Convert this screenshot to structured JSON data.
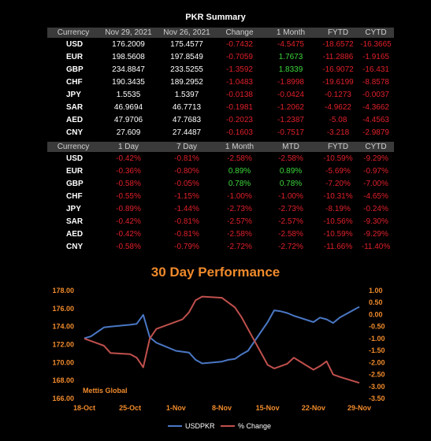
{
  "summary_title": "PKR Summary",
  "table1": {
    "headers": [
      "Currency",
      "Nov 29, 2021",
      "Nov 26, 2021",
      "Change",
      "1 Month",
      "FYTD",
      "CYTD"
    ],
    "rows": [
      [
        "USD",
        "176.2009",
        "175.4577",
        "-0.7432",
        "-4.5475",
        "-18.6572",
        "-16.3665"
      ],
      [
        "EUR",
        "198.5608",
        "197.8549",
        "-0.7059",
        "1.7673",
        "-11.2886",
        "-1.9165"
      ],
      [
        "GBP",
        "234.8847",
        "233.5255",
        "-1.3592",
        "1.8339",
        "-16.9072",
        "-16.431"
      ],
      [
        "CHF",
        "190.3435",
        "189.2952",
        "-1.0483",
        "-1.8998",
        "-19.6199",
        "-8.8578"
      ],
      [
        "JPY",
        "1.5535",
        "1.5397",
        "-0.0138",
        "-0.0424",
        "-0.1273",
        "-0.0037"
      ],
      [
        "SAR",
        "46.9694",
        "46.7713",
        "-0.1981",
        "-1.2062",
        "-4.9622",
        "-4.3662"
      ],
      [
        "AED",
        "47.9706",
        "47.7683",
        "-0.2023",
        "-1.2387",
        "-5.08",
        "-4.4563"
      ],
      [
        "CNY",
        "27.609",
        "27.4487",
        "-0.1603",
        "-0.7517",
        "-3.218",
        "-2.9879"
      ]
    ]
  },
  "table2": {
    "headers": [
      "Currency",
      "1 Day",
      "7 Day",
      "1 Month",
      "MTD",
      "FYTD",
      "CYTD"
    ],
    "rows": [
      [
        "USD",
        "-0.42%",
        "-0.81%",
        "-2.58%",
        "-2.58%",
        "-10.59%",
        "-9.29%"
      ],
      [
        "EUR",
        "-0.36%",
        "-0.80%",
        "0.89%",
        "0.89%",
        "-5.69%",
        "-0.97%"
      ],
      [
        "GBP",
        "-0.58%",
        "-0.05%",
        "0.78%",
        "0.78%",
        "-7.20%",
        "-7.00%"
      ],
      [
        "CHF",
        "-0.55%",
        "-1.15%",
        "-1.00%",
        "-1.00%",
        "-10.31%",
        "-4.65%"
      ],
      [
        "JPY",
        "-0.89%",
        "-1.44%",
        "-2.73%",
        "-2.73%",
        "-8.19%",
        "-0.24%"
      ],
      [
        "SAR",
        "-0.42%",
        "-0.81%",
        "-2.57%",
        "-2.57%",
        "-10.56%",
        "-9.30%"
      ],
      [
        "AED",
        "-0.42%",
        "-0.81%",
        "-2.58%",
        "-2.58%",
        "-10.59%",
        "-9.29%"
      ],
      [
        "CNY",
        "-0.58%",
        "-0.79%",
        "-2.72%",
        "-2.72%",
        "-11.66%",
        "-11.40%"
      ]
    ]
  },
  "colors": {
    "positive": "#3dd83d",
    "negative": "#e0202a",
    "usd_line": "#4a77c4",
    "change_line": "#c0504d",
    "accent": "#f08a2c"
  },
  "chart_data": {
    "type": "line",
    "title": "30 Day Performance",
    "watermark": "Mettis Global",
    "x_ticks": [
      "18-Oct",
      "25-Oct",
      "1-Nov",
      "8-Nov",
      "15-Nov",
      "22-Nov",
      "29-Nov"
    ],
    "x_tick_days": [
      0,
      7,
      14,
      21,
      28,
      35,
      42
    ],
    "y_left": {
      "min": 166,
      "max": 178,
      "ticks": [
        "166.00",
        "168.00",
        "170.00",
        "172.00",
        "174.00",
        "176.00",
        "178.00"
      ]
    },
    "y_right": {
      "min": -3.5,
      "max": 1.0,
      "ticks": [
        "1.00",
        "0.50",
        "0.00",
        "-0.50",
        "-1.00",
        "-1.50",
        "-2.00",
        "-2.50",
        "-3.00",
        "-3.50"
      ]
    },
    "series": [
      {
        "name": "USDPKR",
        "axis": "left",
        "x": [
          0,
          1,
          3,
          4,
          7,
          8,
          9,
          10,
          11,
          14,
          15,
          16,
          17,
          18,
          21,
          22,
          23,
          24,
          25,
          28,
          29,
          30,
          31,
          32,
          35,
          36,
          37,
          38,
          39,
          42
        ],
        "y": [
          172.7,
          172.9,
          173.9,
          174.0,
          174.2,
          174.3,
          175.3,
          172.8,
          172.2,
          171.3,
          171.2,
          171.1,
          170.3,
          169.9,
          170.1,
          170.3,
          170.4,
          170.9,
          171.3,
          174.5,
          175.8,
          175.7,
          175.5,
          175.2,
          174.5,
          175.0,
          174.8,
          174.4,
          175.0,
          176.2
        ]
      },
      {
        "name": "% Change",
        "axis": "right",
        "x": [
          0,
          1,
          3,
          4,
          7,
          8,
          9,
          10,
          11,
          14,
          15,
          16,
          17,
          18,
          21,
          22,
          23,
          24,
          25,
          28,
          29,
          30,
          31,
          32,
          35,
          36,
          37,
          38,
          39,
          42
        ],
        "y": [
          -1.0,
          -1.1,
          -1.3,
          -1.6,
          -1.65,
          -1.8,
          -2.2,
          -1.0,
          -0.6,
          -0.3,
          -0.2,
          0.1,
          0.6,
          0.75,
          0.7,
          0.5,
          0.3,
          -0.1,
          -0.6,
          -2.1,
          -2.25,
          -2.15,
          -2.05,
          -1.8,
          -2.3,
          -2.15,
          -1.95,
          -2.5,
          -2.6,
          -2.85
        ]
      }
    ]
  },
  "legend": [
    {
      "name": "USDPKR",
      "label": "USDPKR"
    },
    {
      "name": "% Change",
      "label": "% Change"
    }
  ]
}
